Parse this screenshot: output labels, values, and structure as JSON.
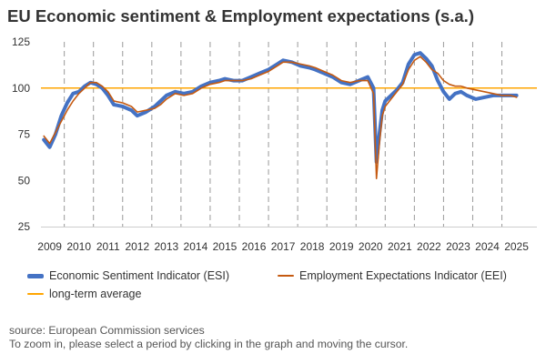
{
  "title": "EU Economic sentiment & Employment expectations (s.a.)",
  "legend": {
    "esi": "Economic Sentiment Indicator (ESI)",
    "eei": "Employment Expectations Indicator (EEI)",
    "avg": "long-term average"
  },
  "footer": {
    "source": "source: European Commission services",
    "hint": "To zoom in, please select a period by clicking in the graph and moving the cursor."
  },
  "colors": {
    "esi": "#4472c4",
    "eei": "#c55a11",
    "avg": "#f4b183",
    "avg_line": "#ffa500",
    "grid": "#999999"
  },
  "chart_data": {
    "type": "line",
    "title": "EU Economic sentiment & Employment expectations (s.a.)",
    "xlabel": "",
    "ylabel": "",
    "xlim": [
      2008.7,
      2025.7
    ],
    "ylim": [
      25,
      125
    ],
    "yticks": [
      25,
      50,
      75,
      100,
      125
    ],
    "xticks": [
      2009,
      2010,
      2011,
      2012,
      2013,
      2014,
      2015,
      2016,
      2017,
      2018,
      2019,
      2020,
      2021,
      2022,
      2023,
      2024,
      2025
    ],
    "vertical_gridlines": "dashed, at each year boundary",
    "reference_line": {
      "name": "long-term average",
      "value": 100
    },
    "series": [
      {
        "name": "Economic Sentiment Indicator (ESI)",
        "x": [
          2008.8,
          2009.0,
          2009.2,
          2009.4,
          2009.6,
          2009.8,
          2010.0,
          2010.2,
          2010.4,
          2010.6,
          2010.8,
          2011.0,
          2011.2,
          2011.5,
          2011.8,
          2012.0,
          2012.3,
          2012.6,
          2012.8,
          2013.0,
          2013.3,
          2013.6,
          2013.9,
          2014.2,
          2014.5,
          2014.8,
          2015.0,
          2015.3,
          2015.6,
          2015.9,
          2016.2,
          2016.5,
          2016.8,
          2017.0,
          2017.3,
          2017.6,
          2017.9,
          2018.1,
          2018.4,
          2018.7,
          2019.0,
          2019.3,
          2019.6,
          2019.9,
          2020.1,
          2020.2,
          2020.3,
          2020.4,
          2020.5,
          2020.7,
          2020.9,
          2021.1,
          2021.3,
          2021.5,
          2021.7,
          2021.9,
          2022.1,
          2022.3,
          2022.5,
          2022.7,
          2022.9,
          2023.1,
          2023.3,
          2023.6,
          2023.9,
          2024.2,
          2024.5,
          2024.8,
          2025.0
        ],
        "y": [
          72,
          68,
          75,
          85,
          92,
          97,
          98,
          101,
          103,
          102,
          100,
          96,
          91,
          90,
          88,
          85,
          87,
          90,
          93,
          96,
          98,
          97,
          98,
          101,
          103,
          104,
          105,
          104,
          104,
          106,
          108,
          110,
          113,
          115,
          114,
          112,
          111,
          110,
          108,
          106,
          103,
          102,
          104,
          106,
          100,
          60,
          75,
          88,
          93,
          96,
          99,
          103,
          113,
          118,
          119,
          116,
          112,
          104,
          98,
          94,
          97,
          98,
          96,
          94,
          95,
          96,
          96,
          96,
          96
        ]
      },
      {
        "name": "Employment Expectations Indicator (EEI)",
        "x": [
          2008.8,
          2009.0,
          2009.2,
          2009.4,
          2009.6,
          2009.8,
          2010.0,
          2010.2,
          2010.4,
          2010.6,
          2010.8,
          2011.0,
          2011.2,
          2011.5,
          2011.8,
          2012.0,
          2012.3,
          2012.6,
          2012.8,
          2013.0,
          2013.3,
          2013.6,
          2013.9,
          2014.2,
          2014.5,
          2014.8,
          2015.0,
          2015.3,
          2015.6,
          2015.9,
          2016.2,
          2016.5,
          2016.8,
          2017.0,
          2017.3,
          2017.6,
          2017.9,
          2018.1,
          2018.4,
          2018.7,
          2019.0,
          2019.3,
          2019.6,
          2019.9,
          2020.1,
          2020.2,
          2020.3,
          2020.4,
          2020.5,
          2020.7,
          2020.9,
          2021.1,
          2021.3,
          2021.5,
          2021.7,
          2021.9,
          2022.1,
          2022.3,
          2022.5,
          2022.7,
          2022.9,
          2023.1,
          2023.3,
          2023.6,
          2023.9,
          2024.2,
          2024.5,
          2024.8,
          2025.0
        ],
        "y": [
          74,
          70,
          76,
          82,
          88,
          93,
          97,
          100,
          103,
          103,
          101,
          98,
          93,
          92,
          90,
          87,
          88,
          89,
          91,
          94,
          97,
          96,
          97,
          100,
          102,
          103,
          104,
          104,
          104,
          105,
          107,
          109,
          112,
          114,
          114,
          113,
          112,
          111,
          109,
          107,
          104,
          103,
          104,
          104,
          97,
          51,
          70,
          85,
          90,
          94,
          98,
          102,
          110,
          115,
          117,
          114,
          110,
          108,
          104,
          102,
          101,
          101,
          100,
          99,
          98,
          97,
          96,
          96,
          95
        ]
      }
    ]
  }
}
